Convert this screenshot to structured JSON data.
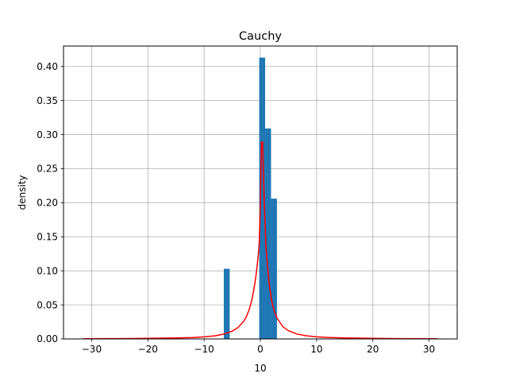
{
  "chart_data": {
    "type": "bar",
    "title": "Cauchy",
    "xlabel": "10",
    "ylabel": "density",
    "xlim": [
      -35,
      35
    ],
    "ylim": [
      0,
      0.43
    ],
    "grid": true,
    "xticks": [
      -30,
      -20,
      -10,
      0,
      10,
      20,
      30
    ],
    "xtick_labels": [
      "−30",
      "−20",
      "−10",
      "0",
      "10",
      "20",
      "30"
    ],
    "yticks": [
      0.0,
      0.05,
      0.1,
      0.15,
      0.2,
      0.25,
      0.3,
      0.35,
      0.4
    ],
    "ytick_labels": [
      "0.00",
      "0.05",
      "0.10",
      "0.15",
      "0.20",
      "0.25",
      "0.30",
      "0.35",
      "0.40"
    ],
    "bars": {
      "color": "#1f77b4",
      "bin_edges": [
        -6.5,
        -5.45,
        -4.4,
        -3.35,
        -2.3,
        -1.25,
        -0.2,
        0.85,
        1.9,
        2.95
      ],
      "values": [
        0.103,
        0.0,
        0.0,
        0.0,
        0.0,
        0.0,
        0.413,
        0.309,
        0.206
      ]
    },
    "curve": {
      "color": "#ff0000",
      "x": [
        -31.5,
        -25,
        -20,
        -15,
        -12,
        -10,
        -8,
        -6.5,
        -5,
        -4,
        -3,
        -2.5,
        -2,
        -1.5,
        -1,
        -0.7,
        -0.4,
        -0.2,
        0,
        0.2,
        0.4,
        0.7,
        1,
        1.5,
        2,
        2.5,
        3,
        4,
        5,
        6.5,
        8,
        10,
        12,
        15,
        20,
        25,
        31.5
      ],
      "y": [
        0.0003,
        0.0005,
        0.0008,
        0.0014,
        0.0021,
        0.003,
        0.0047,
        0.0071,
        0.0114,
        0.0166,
        0.0253,
        0.0325,
        0.0427,
        0.0576,
        0.0799,
        0.0979,
        0.12,
        0.14,
        0.2,
        0.289,
        0.289,
        0.2,
        0.135,
        0.085,
        0.056,
        0.04,
        0.03,
        0.018,
        0.012,
        0.0072,
        0.0048,
        0.0031,
        0.0022,
        0.0014,
        0.0008,
        0.0005,
        0.0003
      ]
    }
  }
}
